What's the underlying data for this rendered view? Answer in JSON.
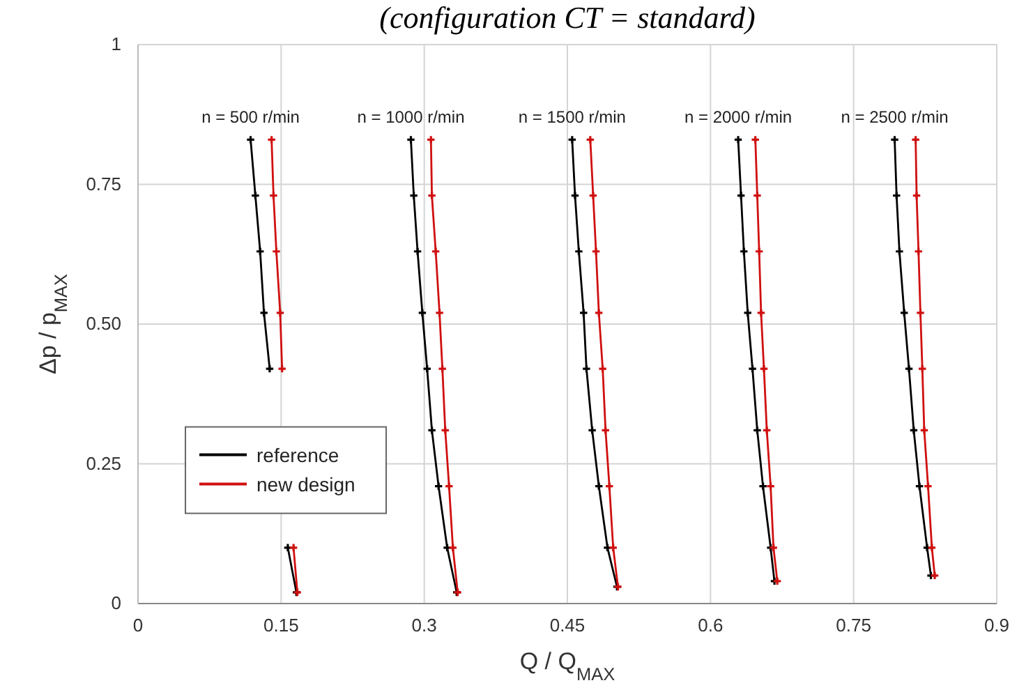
{
  "chart_data": {
    "type": "line",
    "title": "(configuration CT = standard)",
    "xlabel": "Q / Q$_{MAX}$",
    "ylabel": "Δp / p$_{MAX}$",
    "xlim": [
      0,
      0.9
    ],
    "xticks": [
      0,
      0.15,
      0.3,
      0.45,
      0.6,
      0.75,
      0.9
    ],
    "ylim": [
      0,
      1
    ],
    "yticks": [
      0,
      0.25,
      {
        "value": 0.5,
        "label": "0.50"
      },
      0.75,
      1
    ],
    "grid": true,
    "legend": "left",
    "marker": "cross",
    "line_style": "solid",
    "annotations": [
      "n = 500 r/min",
      "n = 1000 r/min",
      "n = 1500 r/min",
      "n = 2000 r/min",
      "n = 2500 r/min"
    ],
    "series": [
      {
        "name": "reference",
        "color": "#000000",
        "x": [
          0.118,
          0.123,
          0.128,
          0.132,
          0.138,
          0.143,
          0.15,
          0.157,
          0.166
        ],
        "values": [
          0.83,
          0.73,
          0.63,
          0.52,
          0.42,
          null,
          null,
          0.1,
          0.02
        ]
      },
      {
        "name": "new design",
        "color": "#d01010",
        "x": [
          0.14,
          0.142,
          0.145,
          0.149,
          0.151,
          0.153,
          0.155,
          0.163,
          0.167
        ],
        "values": [
          0.83,
          0.73,
          0.63,
          0.52,
          0.42,
          null,
          null,
          0.1,
          0.02
        ]
      },
      {
        "color": "#000000",
        "x": [
          0.286,
          0.289,
          0.293,
          0.298,
          0.303,
          0.308,
          0.315,
          0.324,
          0.334
        ],
        "values": [
          0.83,
          0.73,
          0.63,
          0.52,
          0.42,
          0.31,
          0.21,
          0.1,
          0.02
        ]
      },
      {
        "color": "#d01010",
        "x": [
          0.307,
          0.308,
          0.312,
          0.316,
          0.319,
          0.322,
          0.326,
          0.33,
          0.335
        ],
        "values": [
          0.83,
          0.73,
          0.63,
          0.52,
          0.42,
          0.31,
          0.21,
          0.1,
          0.02
        ]
      },
      {
        "color": "#000000",
        "x": [
          0.455,
          0.458,
          0.462,
          0.467,
          0.47,
          0.476,
          0.483,
          0.492,
          0.502
        ],
        "values": [
          0.83,
          0.73,
          0.63,
          0.52,
          0.42,
          0.31,
          0.21,
          0.1,
          0.03
        ]
      },
      {
        "color": "#d01010",
        "x": [
          0.474,
          0.477,
          0.48,
          0.483,
          0.487,
          0.49,
          0.494,
          0.498,
          0.503
        ],
        "values": [
          0.83,
          0.73,
          0.63,
          0.52,
          0.42,
          0.31,
          0.21,
          0.1,
          0.03
        ]
      },
      {
        "color": "#000000",
        "x": [
          0.629,
          0.632,
          0.635,
          0.639,
          0.644,
          0.649,
          0.655,
          0.663,
          0.667
        ],
        "values": [
          0.83,
          0.73,
          0.63,
          0.52,
          0.42,
          0.31,
          0.21,
          0.1,
          0.04
        ]
      },
      {
        "color": "#d01010",
        "x": [
          0.647,
          0.649,
          0.651,
          0.653,
          0.656,
          0.659,
          0.663,
          0.666,
          0.67
        ],
        "values": [
          0.83,
          0.73,
          0.63,
          0.52,
          0.42,
          0.31,
          0.21,
          0.1,
          0.04
        ]
      },
      {
        "color": "#000000",
        "x": [
          0.793,
          0.795,
          0.798,
          0.803,
          0.808,
          0.813,
          0.819,
          0.827,
          0.831
        ],
        "values": [
          0.83,
          0.73,
          0.63,
          0.52,
          0.42,
          0.31,
          0.21,
          0.1,
          0.05
        ]
      },
      {
        "color": "#d01010",
        "x": [
          0.815,
          0.816,
          0.818,
          0.82,
          0.822,
          0.824,
          0.828,
          0.832,
          0.835
        ],
        "values": [
          0.83,
          0.73,
          0.63,
          0.52,
          0.42,
          0.31,
          0.21,
          0.1,
          0.05
        ]
      }
    ]
  }
}
